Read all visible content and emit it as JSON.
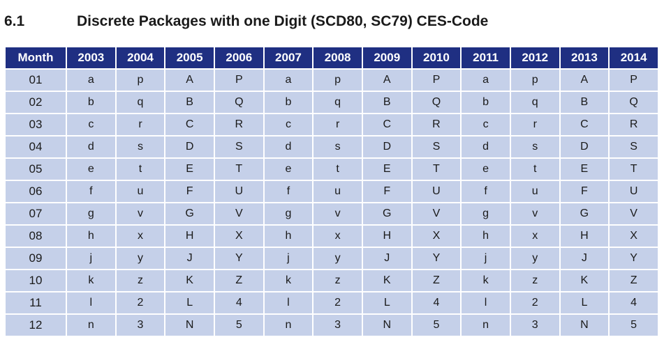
{
  "section": {
    "number": "6.1",
    "title": "Discrete Packages with one Digit (SCD80, SC79) CES-Code"
  },
  "table": {
    "headers": [
      "Month",
      "2003",
      "2004",
      "2005",
      "2006",
      "2007",
      "2008",
      "2009",
      "2010",
      "2011",
      "2012",
      "2013",
      "2014"
    ],
    "rows": [
      [
        "01",
        "a",
        "p",
        "A",
        "P",
        "a",
        "p",
        "A",
        "P",
        "a",
        "p",
        "A",
        "P"
      ],
      [
        "02",
        "b",
        "q",
        "B",
        "Q",
        "b",
        "q",
        "B",
        "Q",
        "b",
        "q",
        "B",
        "Q"
      ],
      [
        "03",
        "c",
        "r",
        "C",
        "R",
        "c",
        "r",
        "C",
        "R",
        "c",
        "r",
        "C",
        "R"
      ],
      [
        "04",
        "d",
        "s",
        "D",
        "S",
        "d",
        "s",
        "D",
        "S",
        "d",
        "s",
        "D",
        "S"
      ],
      [
        "05",
        "e",
        "t",
        "E",
        "T",
        "e",
        "t",
        "E",
        "T",
        "e",
        "t",
        "E",
        "T"
      ],
      [
        "06",
        "f",
        "u",
        "F",
        "U",
        "f",
        "u",
        "F",
        "U",
        "f",
        "u",
        "F",
        "U"
      ],
      [
        "07",
        "g",
        "v",
        "G",
        "V",
        "g",
        "v",
        "G",
        "V",
        "g",
        "v",
        "G",
        "V"
      ],
      [
        "08",
        "h",
        "x",
        "H",
        "X",
        "h",
        "x",
        "H",
        "X",
        "h",
        "x",
        "H",
        "X"
      ],
      [
        "09",
        "j",
        "y",
        "J",
        "Y",
        "j",
        "y",
        "J",
        "Y",
        "j",
        "y",
        "J",
        "Y"
      ],
      [
        "10",
        "k",
        "z",
        "K",
        "Z",
        "k",
        "z",
        "K",
        "Z",
        "k",
        "z",
        "K",
        "Z"
      ],
      [
        "11",
        "l",
        "2",
        "L",
        "4",
        "l",
        "2",
        "L",
        "4",
        "l",
        "2",
        "L",
        "4"
      ],
      [
        "12",
        "n",
        "3",
        "N",
        "5",
        "n",
        "3",
        "N",
        "5",
        "n",
        "3",
        "N",
        "5"
      ]
    ]
  },
  "colors": {
    "header_bg": "#1f2f82",
    "header_text": "#ffffff",
    "cell_bg": "#c5d0e9",
    "cell_text": "#1a1a1a"
  }
}
